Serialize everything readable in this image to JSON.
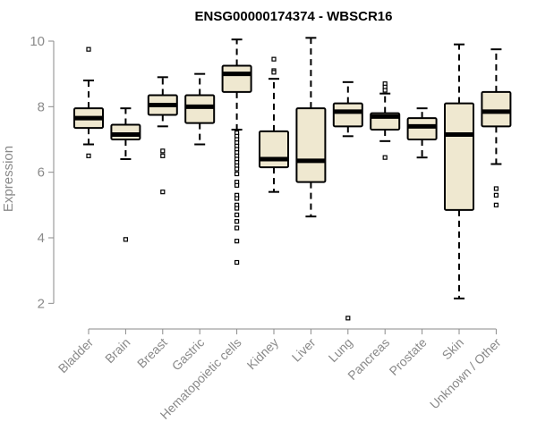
{
  "chart_data": {
    "type": "box",
    "title": "ENSG00000174374 - WBSCR16",
    "xlabel": "",
    "ylabel": "Expression",
    "ylim": [
      1.3,
      10.3
    ],
    "yticks": [
      2,
      4,
      6,
      8,
      10
    ],
    "grid": false,
    "box_fill": "#efe8d0",
    "box_stroke": "#000000",
    "categories": [
      "Bladder",
      "Brain",
      "Breast",
      "Gastric",
      "Hematopoietic cells",
      "Kidney",
      "Liver",
      "Lung",
      "Pancreas",
      "Prostate",
      "Skin",
      "Unknown / Other"
    ],
    "boxes": [
      {
        "category": "Bladder",
        "whisker_low": 6.85,
        "q1": 7.35,
        "median": 7.65,
        "q3": 7.95,
        "whisker_high": 8.8,
        "outliers": [
          9.75,
          6.5
        ]
      },
      {
        "category": "Brain",
        "whisker_low": 6.4,
        "q1": 7.0,
        "median": 7.15,
        "q3": 7.45,
        "whisker_high": 7.95,
        "outliers": [
          3.95
        ]
      },
      {
        "category": "Breast",
        "whisker_low": 7.4,
        "q1": 7.75,
        "median": 8.05,
        "q3": 8.35,
        "whisker_high": 8.9,
        "outliers": [
          6.65,
          6.5,
          5.4
        ]
      },
      {
        "category": "Gastric",
        "whisker_low": 6.85,
        "q1": 7.5,
        "median": 8.0,
        "q3": 8.35,
        "whisker_high": 9.0,
        "outliers": []
      },
      {
        "category": "Hematopoietic cells",
        "whisker_low": 7.3,
        "q1": 8.45,
        "median": 9.0,
        "q3": 9.25,
        "whisker_high": 10.05,
        "outliers": [
          7.2,
          7.1,
          7.0,
          6.9,
          6.8,
          6.7,
          6.6,
          6.5,
          6.4,
          6.3,
          6.2,
          6.1,
          5.95,
          5.7,
          5.6,
          5.3,
          5.2,
          5.0,
          4.9,
          4.7,
          4.5,
          4.3,
          3.9,
          3.25
        ]
      },
      {
        "category": "Kidney",
        "whisker_low": 5.4,
        "q1": 6.15,
        "median": 6.4,
        "q3": 7.25,
        "whisker_high": 8.85,
        "outliers": [
          9.45,
          9.1,
          9.05
        ]
      },
      {
        "category": "Liver",
        "whisker_low": 4.65,
        "q1": 5.7,
        "median": 6.35,
        "q3": 7.95,
        "whisker_high": 10.1,
        "outliers": []
      },
      {
        "category": "Lung",
        "whisker_low": 7.1,
        "q1": 7.4,
        "median": 7.85,
        "q3": 8.1,
        "whisker_high": 8.75,
        "outliers": [
          1.55
        ]
      },
      {
        "category": "Pancreas",
        "whisker_low": 6.95,
        "q1": 7.3,
        "median": 7.7,
        "q3": 7.8,
        "whisker_high": 8.4,
        "outliers": [
          8.7,
          8.6,
          8.5,
          6.45
        ]
      },
      {
        "category": "Prostate",
        "whisker_low": 6.45,
        "q1": 7.0,
        "median": 7.4,
        "q3": 7.65,
        "whisker_high": 7.95,
        "outliers": []
      },
      {
        "category": "Skin",
        "whisker_low": 2.15,
        "q1": 4.85,
        "median": 7.15,
        "q3": 8.1,
        "whisker_high": 9.9,
        "outliers": []
      },
      {
        "category": "Unknown / Other",
        "whisker_low": 6.25,
        "q1": 7.4,
        "median": 7.85,
        "q3": 8.45,
        "whisker_high": 9.75,
        "outliers": [
          5.5,
          5.3,
          5.0
        ]
      }
    ]
  }
}
